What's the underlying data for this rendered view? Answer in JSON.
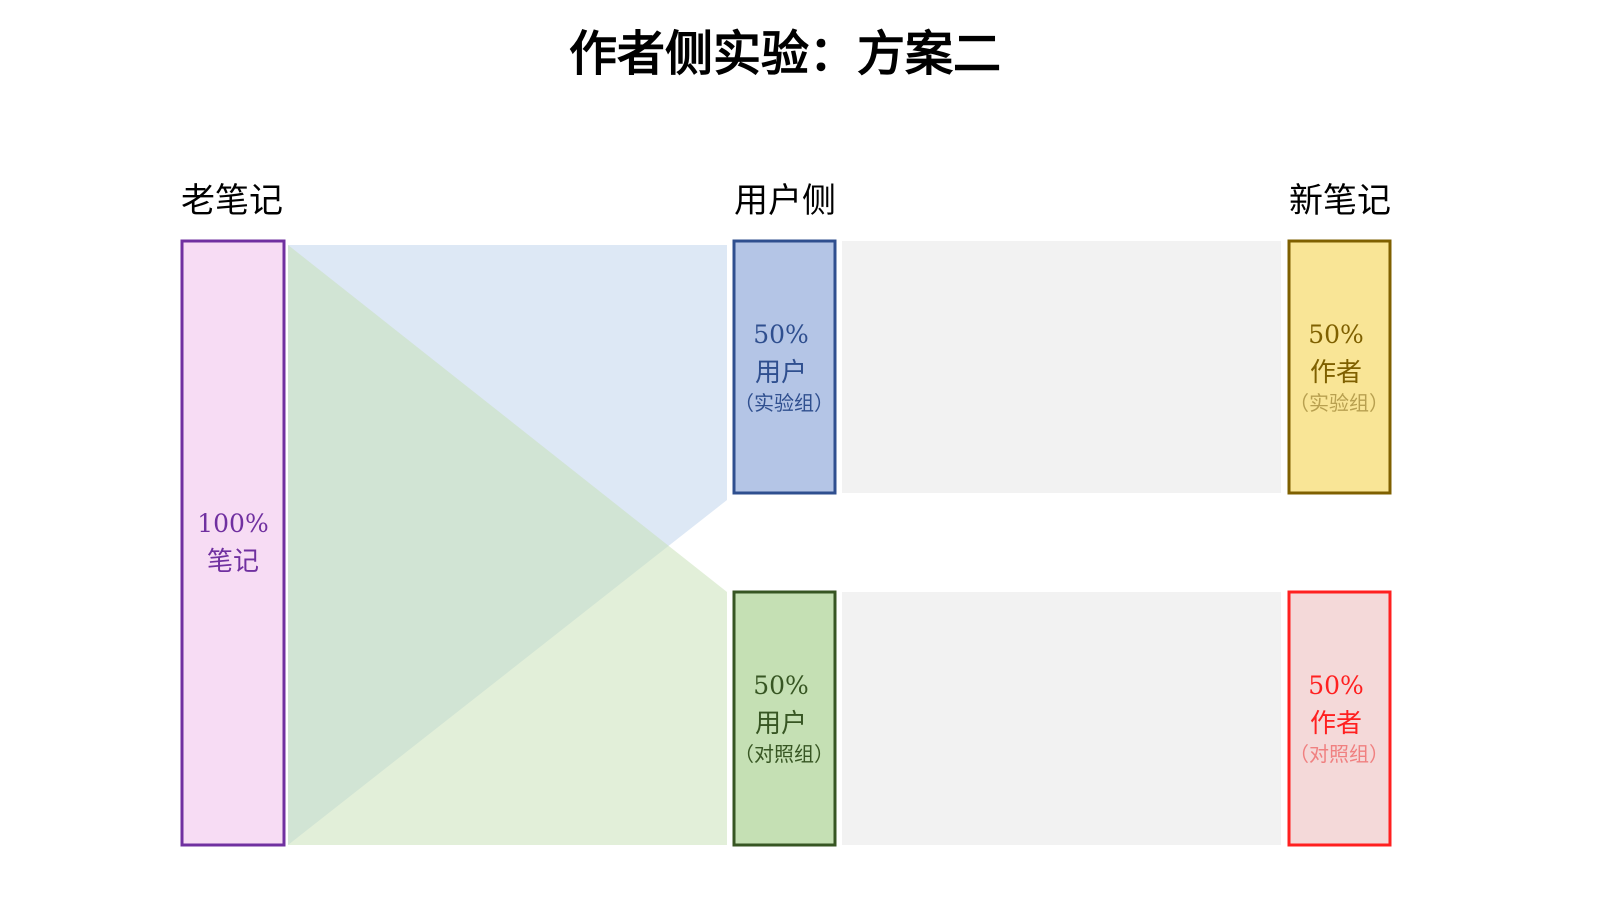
{
  "title": "作者侧实验：方案二",
  "columns": [
    "老笔记",
    "用户侧",
    "新笔记"
  ],
  "nodes": {
    "old": {
      "pct": "100%",
      "label": "笔记",
      "fill": "#f7dcf4",
      "stroke": "#7030a0",
      "text": "#7030a0"
    },
    "user_exp": {
      "pct": "50%",
      "label": "用户",
      "sub": "（实验组）",
      "fill": "#b4c5e6",
      "stroke": "#2f4f8f",
      "text": "#2f4f8f"
    },
    "user_ctrl": {
      "pct": "50%",
      "label": "用户",
      "sub": "（对照组）",
      "fill": "#c5e0b4",
      "stroke": "#375623",
      "text": "#375623"
    },
    "author_exp": {
      "pct": "50%",
      "label": "作者",
      "sub": "（实验组）",
      "fill": "#f9e596",
      "stroke": "#7f6000",
      "text": "#7f6000",
      "subColor": "#b8a050"
    },
    "author_ctrl": {
      "pct": "50%",
      "label": "作者",
      "sub": "（对照组）",
      "fill": "#f4d9d9",
      "stroke": "#ff2020",
      "text": "#ff2020",
      "subColor": "#f08080"
    }
  },
  "flows": {
    "blue": "#dde8f5",
    "green": "#d3e8c8",
    "gray": "#f2f2f2"
  }
}
